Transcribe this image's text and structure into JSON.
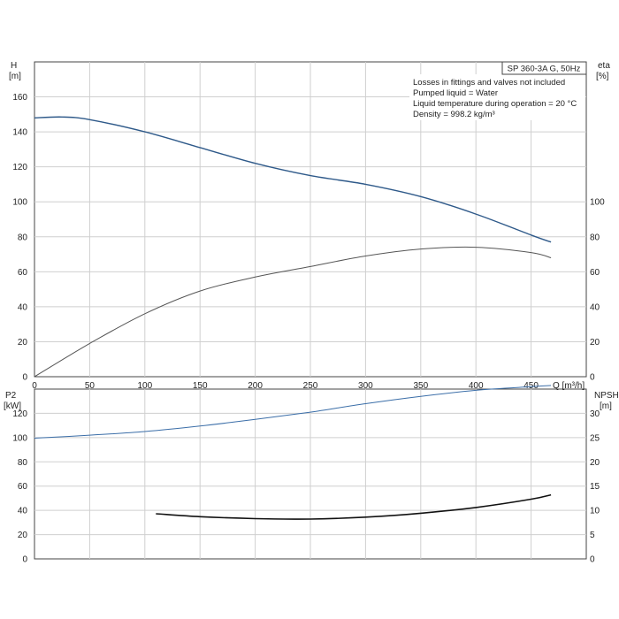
{
  "chart_data": [
    {
      "type": "line",
      "name": "top",
      "info_title": "SP 360-3A G, 50Hz",
      "info_lines": [
        "Losses in fittings and valves not included",
        "Pumped liquid = Water",
        "Liquid temperature during operation = 20 °C",
        "Density = 998.2 kg/m³"
      ],
      "left_axis": {
        "label": "H",
        "unit": "[m]",
        "ticks": [
          "0",
          "20",
          "40",
          "60",
          "80",
          "100",
          "120",
          "140",
          "160"
        ],
        "range": [
          0,
          180
        ]
      },
      "right_axis": {
        "label": "eta",
        "unit": "[%]",
        "ticks": [
          "0",
          "20",
          "40",
          "60",
          "80",
          "100"
        ],
        "range": [
          0,
          180
        ]
      },
      "x_axis": {
        "label": "Q [m³/h]",
        "ticks": [
          "0",
          "50",
          "100",
          "150",
          "200",
          "250",
          "300",
          "350",
          "400",
          "450"
        ],
        "range": [
          0,
          500
        ]
      },
      "grid": true,
      "series": [
        {
          "axis": "left",
          "color": "#2f5a8a",
          "x": [
            0,
            25,
            50,
            100,
            150,
            200,
            250,
            300,
            350,
            400,
            450,
            468
          ],
          "y": [
            148,
            148.5,
            147,
            140,
            131,
            122,
            115,
            110,
            103,
            93,
            81,
            77
          ]
        },
        {
          "axis": "right",
          "color": "#555555",
          "x": [
            0,
            50,
            100,
            150,
            200,
            250,
            300,
            350,
            400,
            450,
            468
          ],
          "y": [
            0,
            19,
            36,
            49,
            57,
            63,
            69,
            73,
            74,
            71,
            68
          ]
        }
      ]
    },
    {
      "type": "line",
      "name": "bottom",
      "left_axis": {
        "label": "P2",
        "unit": "[kW]",
        "ticks": [
          "0",
          "20",
          "40",
          "60",
          "80",
          "100",
          "120"
        ],
        "range": [
          0,
          140
        ]
      },
      "right_axis": {
        "label": "NPSH",
        "unit": "[m]",
        "ticks": [
          "0",
          "5",
          "10",
          "15",
          "20",
          "25",
          "30"
        ],
        "range": [
          0,
          35
        ]
      },
      "x_axis": {
        "range": [
          0,
          500
        ]
      },
      "grid": true,
      "series": [
        {
          "axis": "left",
          "color": "#3b6ea8",
          "x": [
            0,
            50,
            100,
            150,
            200,
            250,
            300,
            350,
            400,
            450,
            468
          ],
          "y": [
            99.5,
            102,
            105,
            109.5,
            115,
            121,
            128,
            134,
            139,
            142,
            143
          ]
        },
        {
          "axis": "right",
          "color": "#111111",
          "x": [
            110,
            150,
            200,
            250,
            300,
            350,
            400,
            450,
            468
          ],
          "y": [
            9.3,
            8.7,
            8.3,
            8.2,
            8.6,
            9.4,
            10.6,
            12.3,
            13.2
          ]
        }
      ]
    }
  ]
}
